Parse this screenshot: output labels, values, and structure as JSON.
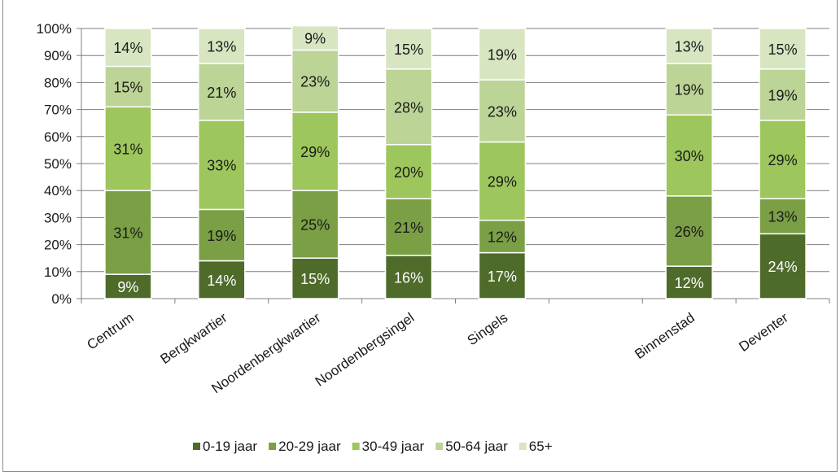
{
  "chart_data": {
    "type": "bar",
    "stacked": true,
    "percent": true,
    "categories": [
      "Centrum",
      "Bergkwartier",
      "Noordenbergkwartier",
      "Noordenbergsingel",
      "Singels",
      "",
      "Binnenstad",
      "Deventer"
    ],
    "series": [
      {
        "name": "0-19 jaar",
        "color": "#4e6b2a",
        "values": [
          9,
          14,
          15,
          16,
          17,
          null,
          12,
          24
        ],
        "labels": [
          "9%",
          "14%",
          "15%",
          "16%",
          "17%",
          "",
          "12%",
          "24%"
        ],
        "label_color": "#ffffff"
      },
      {
        "name": "20-29 jaar",
        "color": "#7a9f45",
        "values": [
          31,
          19,
          25,
          21,
          12,
          null,
          26,
          13
        ],
        "labels": [
          "31%",
          "19%",
          "25%",
          "21%",
          "12%",
          "",
          "26%",
          "13%"
        ],
        "label_color": "#1a1a1a"
      },
      {
        "name": "30-49 jaar",
        "color": "#9dc65c",
        "values": [
          31,
          33,
          29,
          20,
          29,
          null,
          30,
          29
        ],
        "labels": [
          "31%",
          "33%",
          "29%",
          "20%",
          "29%",
          "",
          "30%",
          "29%"
        ],
        "label_color": "#1a1a1a"
      },
      {
        "name": "50-64 jaar",
        "color": "#bcd496",
        "values": [
          15,
          21,
          23,
          28,
          23,
          null,
          19,
          19
        ],
        "labels": [
          "15%",
          "21%",
          "23%",
          "28%",
          "23%",
          "",
          "19%",
          "19%"
        ],
        "label_color": "#1a1a1a"
      },
      {
        "name": "65+",
        "color": "#d7e5c1",
        "values": [
          14,
          13,
          9,
          15,
          19,
          null,
          13,
          15
        ],
        "labels": [
          "14%",
          "13%",
          "9%",
          "15%",
          "19%",
          "",
          "13%",
          "15%"
        ],
        "label_color": "#1a1a1a"
      }
    ],
    "yticks": [
      "0%",
      "10%",
      "20%",
      "30%",
      "40%",
      "50%",
      "60%",
      "70%",
      "80%",
      "90%",
      "100%"
    ],
    "ylim": [
      0,
      100
    ],
    "grid": true,
    "legend": "bottom"
  }
}
